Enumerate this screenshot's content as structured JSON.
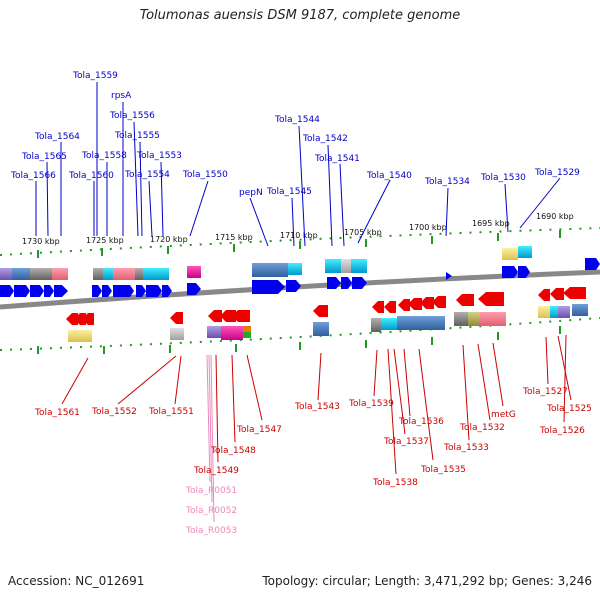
{
  "title": "Tolumonas auensis DSM 9187, complete genome",
  "footer": {
    "accession": "Accession: NC_012691",
    "summary": "Topology: circular; Length: 3,471,292 bp; Genes: 3,246"
  },
  "scale_ticks": [
    "1730 kbp",
    "1725 kbp",
    "1720 kbp",
    "1715 kbp",
    "1710 kbp",
    "1705 kbp",
    "1700 kbp",
    "1695 kbp",
    "1690 kbp"
  ],
  "forward_genes": [
    {
      "label": "Tola_1559",
      "color": "#0000cc"
    },
    {
      "label": "rpsA",
      "color": "#0000cc"
    },
    {
      "label": "Tola_1556",
      "color": "#0000cc"
    },
    {
      "label": "Tola_1564",
      "color": "#0000cc"
    },
    {
      "label": "Tola_1555",
      "color": "#0000cc"
    },
    {
      "label": "Tola_1565",
      "color": "#0000cc"
    },
    {
      "label": "Tola_1558",
      "color": "#0000cc"
    },
    {
      "label": "Tola_1553",
      "color": "#0000cc"
    },
    {
      "label": "Tola_1566",
      "color": "#0000cc"
    },
    {
      "label": "Tola_1560",
      "color": "#0000cc"
    },
    {
      "label": "Tola_1554",
      "color": "#0000cc"
    },
    {
      "label": "Tola_1550",
      "color": "#0000cc"
    },
    {
      "label": "Tola_1544",
      "color": "#0000cc"
    },
    {
      "label": "Tola_1542",
      "color": "#0000cc"
    },
    {
      "label": "Tola_1541",
      "color": "#0000cc"
    },
    {
      "label": "pepN",
      "color": "#0000cc"
    },
    {
      "label": "Tola_1545",
      "color": "#0000cc"
    },
    {
      "label": "Tola_1540",
      "color": "#0000cc"
    },
    {
      "label": "Tola_1534",
      "color": "#0000cc"
    },
    {
      "label": "Tola_1530",
      "color": "#0000cc"
    },
    {
      "label": "Tola_1529",
      "color": "#0000cc"
    }
  ],
  "reverse_genes": [
    {
      "label": "Tola_1561",
      "color": "#cc0000"
    },
    {
      "label": "Tola_1552",
      "color": "#cc0000"
    },
    {
      "label": "Tola_1551",
      "color": "#cc0000"
    },
    {
      "label": "Tola_1547",
      "color": "#cc0000"
    },
    {
      "label": "Tola_1548",
      "color": "#cc0000"
    },
    {
      "label": "Tola_1549",
      "color": "#cc0000"
    },
    {
      "label": "Tola_1543",
      "color": "#cc0000"
    },
    {
      "label": "Tola_1539",
      "color": "#cc0000"
    },
    {
      "label": "Tola_1536",
      "color": "#cc0000"
    },
    {
      "label": "Tola_1537",
      "color": "#cc0000"
    },
    {
      "label": "Tola_1538",
      "color": "#cc0000"
    },
    {
      "label": "Tola_1535",
      "color": "#cc0000"
    },
    {
      "label": "Tola_1533",
      "color": "#cc0000"
    },
    {
      "label": "Tola_1532",
      "color": "#cc0000"
    },
    {
      "label": "metG",
      "color": "#cc0000"
    },
    {
      "label": "Tola_1527",
      "color": "#cc0000"
    },
    {
      "label": "Tola_1525",
      "color": "#cc0000"
    },
    {
      "label": "Tola_1526",
      "color": "#cc0000"
    }
  ],
  "rna_genes": [
    {
      "label": "Tola_R0051",
      "color": "#ee88bb"
    },
    {
      "label": "Tola_R0052",
      "color": "#ee88bb"
    },
    {
      "label": "Tola_R0053",
      "color": "#ee88bb"
    }
  ],
  "colors": {
    "forward_feature": "#0000ee",
    "reverse_feature": "#ee0000",
    "backbone": "#888888",
    "tick": "#229922"
  }
}
